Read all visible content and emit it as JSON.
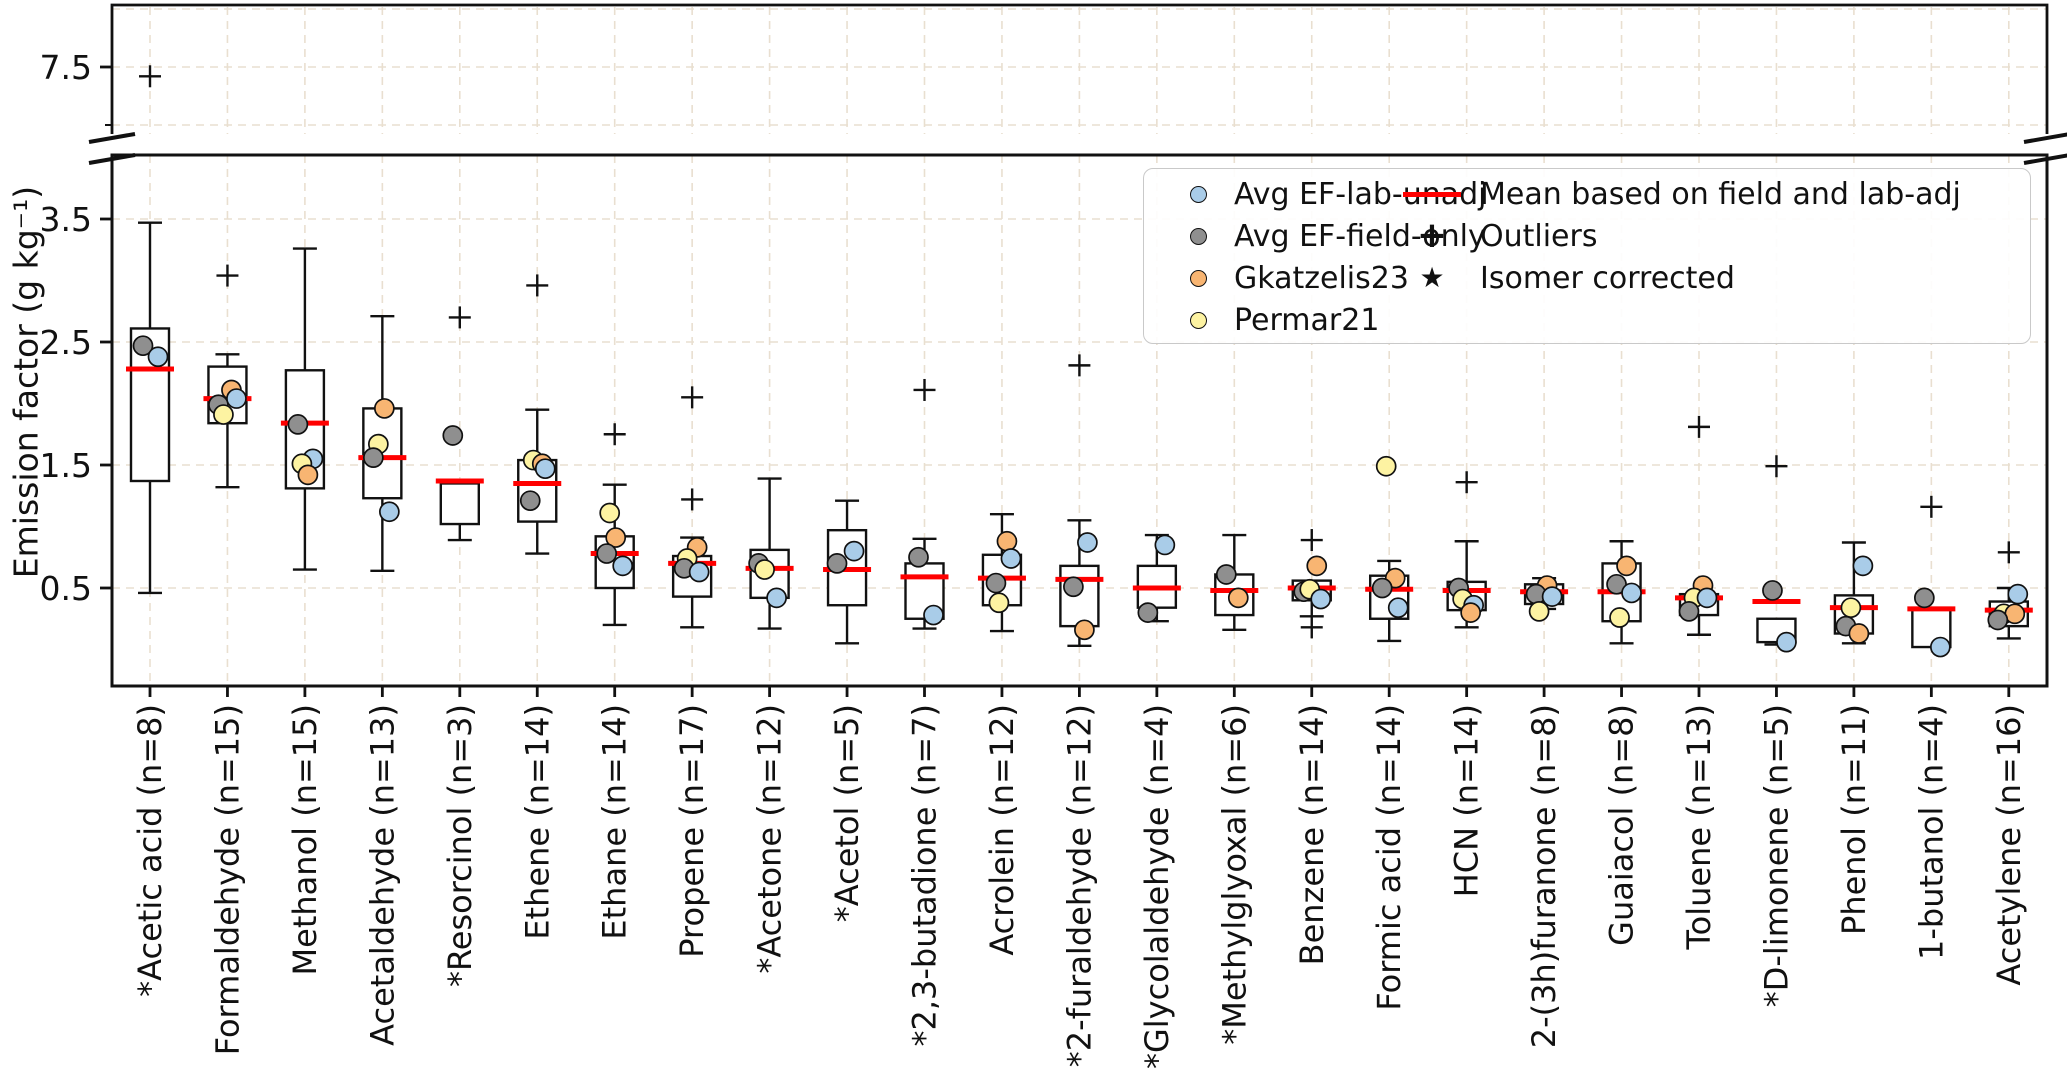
{
  "colors": {
    "background": "#ffffff",
    "grid": "#e9dfd0",
    "box_edge": "#111111",
    "mean_line": "#ff0000",
    "series": {
      "blue": "#a9cce8",
      "gray": "#8f8f8f",
      "orange": "#f8b572",
      "yellow": "#fdf3a2"
    }
  },
  "legend": {
    "col1": [
      {
        "label": "Avg EF-lab-unadj",
        "series": "blue"
      },
      {
        "label": "Avg EF-field-only",
        "series": "gray"
      },
      {
        "label": "Gkatzelis23",
        "series": "orange"
      },
      {
        "label": "Permar21",
        "series": "yellow"
      }
    ],
    "col2": [
      {
        "label": "Mean based on field and lab-adj",
        "marker": "redline"
      },
      {
        "label": "Outliers",
        "marker": "plus"
      },
      {
        "label": "Isomer corrected",
        "marker": "star"
      }
    ]
  },
  "chart_data": {
    "type": "boxplot",
    "title": "",
    "ylabel": "Emission factor (g kg⁻¹)",
    "grid": true,
    "legend_position": "upper right",
    "broken_y_axis": {
      "top_range": [
        6.92,
        8.03
      ],
      "top_ticks": [
        7.5
      ],
      "top_minor_ticks": [
        7.0
      ],
      "top_gridlines": [
        8.0,
        7.5,
        7.0
      ],
      "bottom_range": [
        -0.3,
        4.02
      ],
      "bottom_ticks": [
        3.5,
        2.5,
        1.5,
        0.5
      ],
      "bottom_gridlines": [
        3.5,
        2.5,
        1.5,
        0.5
      ]
    },
    "compounds": [
      {
        "name": "*Acetic acid",
        "n": 8,
        "q1": 1.37,
        "q3": 2.61,
        "mean": 2.28,
        "whisker_low": 0.46,
        "whisker_high": 3.47,
        "outliers": [],
        "outliers_top": [
          7.42
        ],
        "points": [
          {
            "s": "gray",
            "v": 2.47,
            "dx": -7
          },
          {
            "s": "blue",
            "v": 2.38,
            "dx": 8
          }
        ]
      },
      {
        "name": "Formaldehyde",
        "n": 15,
        "q1": 1.84,
        "q3": 2.3,
        "mean": 2.04,
        "whisker_low": 1.32,
        "whisker_high": 2.4,
        "outliers": [
          3.04
        ],
        "outliers_top": [],
        "points": [
          {
            "s": "orange",
            "v": 2.11,
            "dx": 4
          },
          {
            "s": "gray",
            "v": 1.99,
            "dx": -9
          },
          {
            "s": "blue",
            "v": 2.04,
            "dx": 9
          },
          {
            "s": "yellow",
            "v": 1.91,
            "dx": -4
          }
        ]
      },
      {
        "name": "Methanol",
        "n": 15,
        "q1": 1.31,
        "q3": 2.27,
        "mean": 1.84,
        "whisker_low": 0.65,
        "whisker_high": 3.26,
        "outliers": [],
        "outliers_top": [],
        "points": [
          {
            "s": "gray",
            "v": 1.83,
            "dx": -7
          },
          {
            "s": "blue",
            "v": 1.55,
            "dx": 8
          },
          {
            "s": "yellow",
            "v": 1.51,
            "dx": -3
          },
          {
            "s": "orange",
            "v": 1.42,
            "dx": 3
          }
        ]
      },
      {
        "name": "Acetaldehyde",
        "n": 13,
        "q1": 1.23,
        "q3": 1.96,
        "mean": 1.56,
        "whisker_low": 0.64,
        "whisker_high": 2.71,
        "outliers": [],
        "outliers_top": [],
        "points": [
          {
            "s": "orange",
            "v": 1.96,
            "dx": 2
          },
          {
            "s": "yellow",
            "v": 1.67,
            "dx": -4
          },
          {
            "s": "gray",
            "v": 1.56,
            "dx": -9
          },
          {
            "s": "blue",
            "v": 1.12,
            "dx": 7
          }
        ]
      },
      {
        "name": "*Resorcinol",
        "n": 3,
        "q1": 1.02,
        "q3": 1.35,
        "mean": 1.37,
        "whisker_low": 0.89,
        "whisker_high": null,
        "outliers": [
          2.7
        ],
        "outliers_top": [],
        "points": [
          {
            "s": "gray",
            "v": 1.74,
            "dx": -7
          }
        ]
      },
      {
        "name": "Ethene",
        "n": 14,
        "q1": 1.04,
        "q3": 1.54,
        "mean": 1.35,
        "whisker_low": 0.78,
        "whisker_high": 1.95,
        "outliers": [
          2.96
        ],
        "outliers_top": [],
        "points": [
          {
            "s": "yellow",
            "v": 1.54,
            "dx": -4
          },
          {
            "s": "orange",
            "v": 1.51,
            "dx": 5
          },
          {
            "s": "blue",
            "v": 1.47,
            "dx": 8
          },
          {
            "s": "gray",
            "v": 1.21,
            "dx": -7
          }
        ]
      },
      {
        "name": "Ethane",
        "n": 14,
        "q1": 0.5,
        "q3": 0.92,
        "mean": 0.78,
        "whisker_low": 0.2,
        "whisker_high": 1.34,
        "outliers": [
          1.75
        ],
        "outliers_top": [],
        "points": [
          {
            "s": "yellow",
            "v": 1.11,
            "dx": -5
          },
          {
            "s": "orange",
            "v": 0.91,
            "dx": 1
          },
          {
            "s": "gray",
            "v": 0.78,
            "dx": -8
          },
          {
            "s": "blue",
            "v": 0.68,
            "dx": 8
          }
        ]
      },
      {
        "name": "Propene",
        "n": 17,
        "q1": 0.43,
        "q3": 0.76,
        "mean": 0.7,
        "whisker_low": 0.18,
        "whisker_high": 0.91,
        "outliers": [
          2.05,
          1.22
        ],
        "outliers_top": [],
        "points": [
          {
            "s": "orange",
            "v": 0.83,
            "dx": 5
          },
          {
            "s": "yellow",
            "v": 0.74,
            "dx": -5
          },
          {
            "s": "gray",
            "v": 0.66,
            "dx": -8
          },
          {
            "s": "blue",
            "v": 0.63,
            "dx": 7
          }
        ]
      },
      {
        "name": "*Acetone",
        "n": 12,
        "q1": 0.42,
        "q3": 0.81,
        "mean": 0.66,
        "whisker_low": 0.17,
        "whisker_high": 1.39,
        "outliers": [],
        "outliers_top": [],
        "points": [
          {
            "s": "gray",
            "v": 0.7,
            "dx": -11
          },
          {
            "s": "yellow",
            "v": 0.65,
            "dx": -5
          },
          {
            "s": "blue",
            "v": 0.42,
            "dx": 7
          }
        ]
      },
      {
        "name": "*Acetol",
        "n": 5,
        "q1": 0.36,
        "q3": 0.97,
        "mean": 0.65,
        "whisker_low": 0.05,
        "whisker_high": 1.21,
        "outliers": [],
        "outliers_top": [],
        "points": [
          {
            "s": "blue",
            "v": 0.8,
            "dx": 7
          },
          {
            "s": "gray",
            "v": 0.7,
            "dx": -10
          }
        ]
      },
      {
        "name": "*2,3-butadione",
        "n": 7,
        "q1": 0.25,
        "q3": 0.7,
        "mean": 0.59,
        "whisker_low": 0.17,
        "whisker_high": 0.9,
        "outliers": [
          2.11
        ],
        "outliers_top": [],
        "points": [
          {
            "s": "gray",
            "v": 0.75,
            "dx": -6
          },
          {
            "s": "blue",
            "v": 0.28,
            "dx": 9
          }
        ]
      },
      {
        "name": "Acrolein",
        "n": 12,
        "q1": 0.36,
        "q3": 0.77,
        "mean": 0.58,
        "whisker_low": 0.15,
        "whisker_high": 1.1,
        "outliers": [],
        "outliers_top": [],
        "points": [
          {
            "s": "orange",
            "v": 0.88,
            "dx": 5
          },
          {
            "s": "blue",
            "v": 0.74,
            "dx": 9
          },
          {
            "s": "gray",
            "v": 0.54,
            "dx": -6
          },
          {
            "s": "yellow",
            "v": 0.38,
            "dx": -3
          }
        ]
      },
      {
        "name": "*2-furaldehyde",
        "n": 12,
        "q1": 0.19,
        "q3": 0.68,
        "mean": 0.57,
        "whisker_low": 0.03,
        "whisker_high": 1.05,
        "outliers": [
          2.31
        ],
        "outliers_top": [],
        "points": [
          {
            "s": "blue",
            "v": 0.87,
            "dx": 8
          },
          {
            "s": "gray",
            "v": 0.51,
            "dx": -6
          },
          {
            "s": "orange",
            "v": 0.16,
            "dx": 5
          }
        ]
      },
      {
        "name": "*Glycolaldehyde",
        "n": 4,
        "q1": 0.34,
        "q3": 0.68,
        "mean": 0.5,
        "whisker_low": 0.23,
        "whisker_high": 0.93,
        "outliers": [],
        "outliers_top": [],
        "points": [
          {
            "s": "blue",
            "v": 0.85,
            "dx": 8
          },
          {
            "s": "gray",
            "v": 0.3,
            "dx": -9
          }
        ]
      },
      {
        "name": "*Methylglyoxal",
        "n": 6,
        "q1": 0.28,
        "q3": 0.61,
        "mean": 0.48,
        "whisker_low": 0.16,
        "whisker_high": 0.93,
        "outliers": [],
        "outliers_top": [],
        "points": [
          {
            "s": "gray",
            "v": 0.61,
            "dx": -8
          },
          {
            "s": "orange",
            "v": 0.42,
            "dx": 4
          }
        ]
      },
      {
        "name": "Benzene",
        "n": 14,
        "q1": 0.4,
        "q3": 0.56,
        "mean": 0.5,
        "whisker_low": 0.27,
        "whisker_high": null,
        "outliers": [
          0.89,
          0.18
        ],
        "outliers_top": [],
        "points": [
          {
            "s": "orange",
            "v": 0.68,
            "dx": 5
          },
          {
            "s": "gray",
            "v": 0.47,
            "dx": -8
          },
          {
            "s": "yellow",
            "v": 0.49,
            "dx": -2
          },
          {
            "s": "blue",
            "v": 0.41,
            "dx": 9
          }
        ]
      },
      {
        "name": "Formic acid",
        "n": 14,
        "q1": 0.25,
        "q3": 0.6,
        "mean": 0.49,
        "whisker_low": 0.07,
        "whisker_high": 0.72,
        "outliers": [],
        "outliers_top": [],
        "points": [
          {
            "s": "yellow",
            "v": 1.49,
            "dx": -3
          },
          {
            "s": "orange",
            "v": 0.58,
            "dx": 6
          },
          {
            "s": "gray",
            "v": 0.5,
            "dx": -7
          },
          {
            "s": "blue",
            "v": 0.34,
            "dx": 9
          }
        ]
      },
      {
        "name": "HCN",
        "n": 14,
        "q1": 0.32,
        "q3": 0.55,
        "mean": 0.48,
        "whisker_low": 0.18,
        "whisker_high": 0.88,
        "outliers": [
          1.36
        ],
        "outliers_top": [],
        "points": [
          {
            "s": "gray",
            "v": 0.5,
            "dx": -8
          },
          {
            "s": "yellow",
            "v": 0.41,
            "dx": -4
          },
          {
            "s": "blue",
            "v": 0.36,
            "dx": 7
          },
          {
            "s": "orange",
            "v": 0.3,
            "dx": 4
          }
        ]
      },
      {
        "name": "2-(3h)furanone",
        "n": 8,
        "q1": 0.37,
        "q3": 0.53,
        "mean": 0.47,
        "whisker_low": 0.33,
        "whisker_high": 0.58,
        "outliers": [],
        "outliers_top": [],
        "points": [
          {
            "s": "orange",
            "v": 0.52,
            "dx": 3
          },
          {
            "s": "gray",
            "v": 0.45,
            "dx": -8
          },
          {
            "s": "blue",
            "v": 0.43,
            "dx": 8
          },
          {
            "s": "yellow",
            "v": 0.31,
            "dx": -5
          }
        ]
      },
      {
        "name": "Guaiacol",
        "n": 8,
        "q1": 0.23,
        "q3": 0.7,
        "mean": 0.47,
        "whisker_low": 0.05,
        "whisker_high": 0.88,
        "outliers": [],
        "outliers_top": [],
        "points": [
          {
            "s": "orange",
            "v": 0.68,
            "dx": 5
          },
          {
            "s": "gray",
            "v": 0.53,
            "dx": -5
          },
          {
            "s": "blue",
            "v": 0.46,
            "dx": 10
          },
          {
            "s": "yellow",
            "v": 0.26,
            "dx": -2
          }
        ]
      },
      {
        "name": "Toluene",
        "n": 13,
        "q1": 0.28,
        "q3": 0.45,
        "mean": 0.42,
        "whisker_low": 0.12,
        "whisker_high": null,
        "outliers": [
          1.81
        ],
        "outliers_top": [],
        "points": [
          {
            "s": "orange",
            "v": 0.52,
            "dx": 4
          },
          {
            "s": "yellow",
            "v": 0.42,
            "dx": -5
          },
          {
            "s": "blue",
            "v": 0.42,
            "dx": 8
          },
          {
            "s": "gray",
            "v": 0.31,
            "dx": -10
          }
        ]
      },
      {
        "name": "*D-limonene",
        "n": 5,
        "q1": 0.06,
        "q3": 0.25,
        "mean": 0.39,
        "whisker_low": 0.04,
        "whisker_high": null,
        "outliers": [
          1.49
        ],
        "outliers_top": [],
        "points": [
          {
            "s": "gray",
            "v": 0.48,
            "dx": -4
          },
          {
            "s": "blue",
            "v": 0.06,
            "dx": 10
          }
        ]
      },
      {
        "name": "Phenol",
        "n": 11,
        "q1": 0.13,
        "q3": 0.44,
        "mean": 0.34,
        "whisker_low": 0.05,
        "whisker_high": 0.87,
        "outliers": [],
        "outliers_top": [],
        "points": [
          {
            "s": "blue",
            "v": 0.68,
            "dx": 9
          },
          {
            "s": "yellow",
            "v": 0.34,
            "dx": -3
          },
          {
            "s": "gray",
            "v": 0.19,
            "dx": -8
          },
          {
            "s": "orange",
            "v": 0.13,
            "dx": 5
          }
        ]
      },
      {
        "name": "1-butanol",
        "n": 4,
        "q1": 0.02,
        "q3": 0.34,
        "mean": 0.33,
        "whisker_low": null,
        "whisker_high": null,
        "outliers": [
          1.16
        ],
        "outliers_top": [],
        "points": [
          {
            "s": "gray",
            "v": 0.42,
            "dx": -7
          },
          {
            "s": "blue",
            "v": 0.02,
            "dx": 9
          }
        ]
      },
      {
        "name": "Acetylene",
        "n": 16,
        "q1": 0.19,
        "q3": 0.39,
        "mean": 0.32,
        "whisker_low": 0.09,
        "whisker_high": 0.5,
        "outliers": [
          0.79
        ],
        "outliers_top": [],
        "points": [
          {
            "s": "blue",
            "v": 0.45,
            "dx": 9
          },
          {
            "s": "yellow",
            "v": 0.29,
            "dx": -5
          },
          {
            "s": "orange",
            "v": 0.29,
            "dx": 6
          },
          {
            "s": "gray",
            "v": 0.24,
            "dx": -11
          }
        ]
      }
    ]
  }
}
